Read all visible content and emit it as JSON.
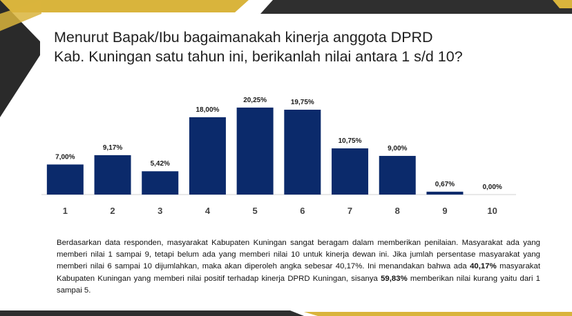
{
  "slide": {
    "title_line1": "Menurut Bapak/Ibu bagaimanakah kinerja anggota DPRD",
    "title_line2": "Kab. Kuningan satu tahun ini, berikanlah nilai antara 1 s/d 10?"
  },
  "chart_data": {
    "type": "bar",
    "categories": [
      "1",
      "2",
      "3",
      "4",
      "5",
      "6",
      "7",
      "8",
      "9",
      "10"
    ],
    "values": [
      7.0,
      9.17,
      5.42,
      18.0,
      20.25,
      19.75,
      10.75,
      9.0,
      0.67,
      0.0
    ],
    "data_labels": [
      "7,00%",
      "9,17%",
      "5,42%",
      "18,00%",
      "20,25%",
      "19,75%",
      "10,75%",
      "9,00%",
      "0,67%",
      "0,00%"
    ],
    "title": "",
    "xlabel": "",
    "ylabel": "",
    "ylim": [
      0,
      22
    ],
    "grid": false,
    "bar_color": "#0b2a6b"
  },
  "description": {
    "line1": "Berdasarkan data responden, masyarakat Kabupaten Kuningan sangat beragam dalam memberikan penilaian.",
    "line2": "Masyarakat ada yang memberi nilai 1 sampai 9, tetapi belum ada yang memberi nilai 10 untuk kinerja dewan ini.",
    "line3": "Jika jumlah persentase masyarakat yang memberi nilai 6 sampai 10 dijumlahkan, maka akan diperoleh angka",
    "line4_a": "sebesar 40,17%. Ini menandakan bahwa ada ",
    "line4_b": "40,17%",
    "line4_c": " masyarakat Kabupaten Kuningan yang memberi nilai positif",
    "line5_a": "terhadap kinerja DPRD Kuningan, sisanya ",
    "line5_b": "59,83%",
    "line5_c": " memberikan nilai kurang yaitu dari 1 sampai 5."
  },
  "colors": {
    "accent_dark": "#2e2e2e",
    "accent_gold": "#d9b43c",
    "bar": "#0b2a6b"
  }
}
